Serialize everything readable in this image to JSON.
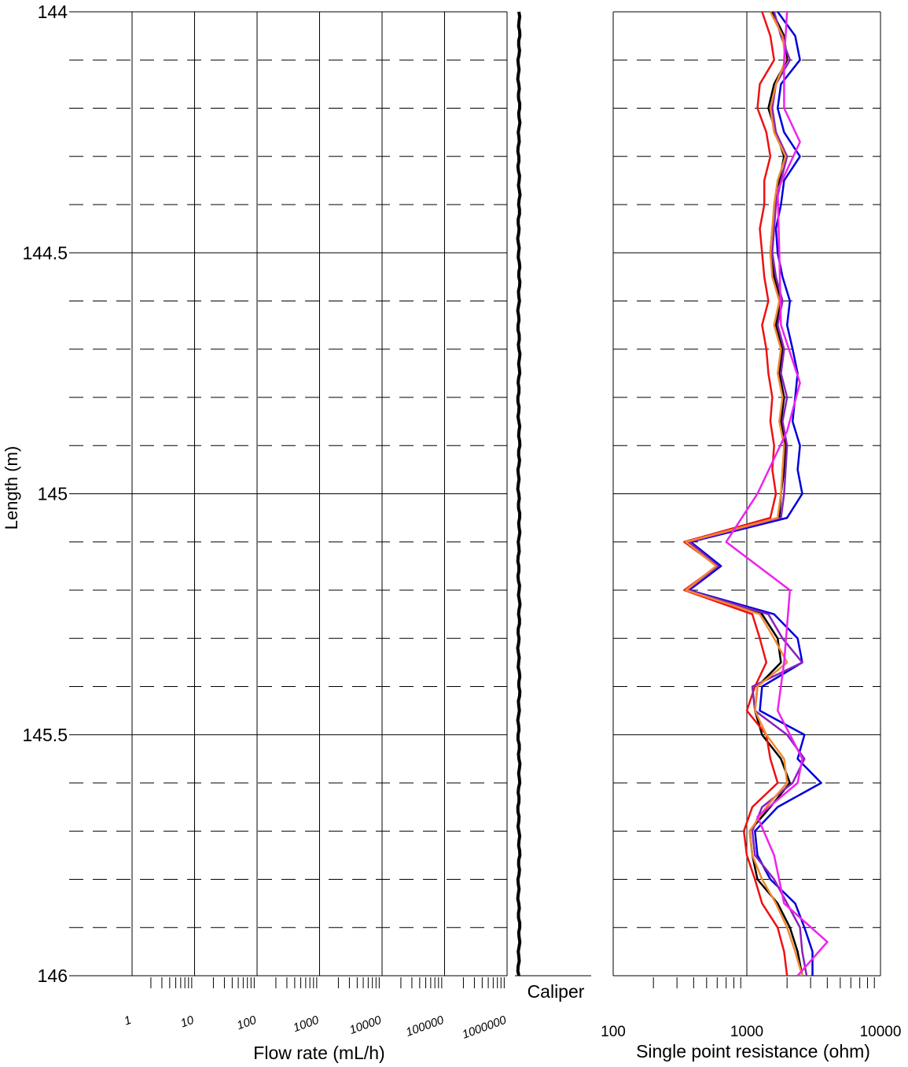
{
  "chart_data": [
    {
      "type": "line",
      "panel": "flow",
      "title": "",
      "xlabel": "Flow rate (mL/h)",
      "ylabel": "Length (m)",
      "x_scale": "log",
      "xlim": [
        1,
        1000000
      ],
      "ylim": [
        144,
        146
      ],
      "y_inverted": true,
      "x_tick_labels": [
        "1",
        "10",
        "100",
        "1000",
        "10000",
        "100000",
        "1000000"
      ],
      "y_tick_labels": [
        "144",
        "144.5",
        "145",
        "145.5",
        "146"
      ],
      "grid": "solid major lines, dashed minor depth lines every 0.1 m",
      "series": []
    },
    {
      "type": "line",
      "panel": "caliper",
      "xlabel": "Caliper",
      "ylim": [
        144,
        146
      ],
      "series": [
        {
          "color": "#000000",
          "x_relative": 0.5,
          "y": [
            144,
            146
          ]
        }
      ]
    },
    {
      "type": "line",
      "panel": "resistance",
      "xlabel": "Single point resistance (ohm)",
      "x_scale": "log",
      "xlim": [
        100,
        10000
      ],
      "ylim": [
        144,
        146
      ],
      "x_tick_labels": [
        "100",
        "1000",
        "10000"
      ],
      "grid": "solid major lines, dashed minor depth lines every 0.1 m",
      "series": [
        {
          "color": "#000000",
          "y": [
            144.0,
            144.05,
            144.1,
            144.15,
            144.2,
            144.25,
            144.3,
            144.35,
            144.4,
            144.45,
            144.5,
            144.55,
            144.6,
            144.65,
            144.7,
            144.75,
            144.8,
            144.85,
            144.9,
            144.95,
            145.0,
            145.05,
            145.1,
            145.15,
            145.2,
            145.25,
            145.3,
            145.35,
            145.4,
            145.45,
            145.5,
            145.55,
            145.6,
            145.65,
            145.7,
            145.75,
            145.8,
            145.85,
            145.9,
            145.95,
            146.0
          ],
          "x": [
            1550,
            1900,
            2000,
            1600,
            1450,
            1650,
            1900,
            1750,
            1650,
            1550,
            1500,
            1600,
            1800,
            1650,
            1850,
            1750,
            1900,
            1800,
            1950,
            1900,
            1800,
            1750,
            360,
            600,
            360,
            1300,
            1700,
            1800,
            1200,
            1150,
            1300,
            1800,
            2100,
            1500,
            1050,
            1100,
            1200,
            1700,
            2100,
            2400,
            2600
          ]
        },
        {
          "color": "#0000dd",
          "y": [
            144.0,
            144.05,
            144.1,
            144.15,
            144.2,
            144.25,
            144.3,
            144.35,
            144.4,
            144.45,
            144.5,
            144.55,
            144.6,
            144.65,
            144.7,
            144.75,
            144.8,
            144.85,
            144.9,
            144.95,
            145.0,
            145.05,
            145.1,
            145.15,
            145.2,
            145.25,
            145.3,
            145.35,
            145.4,
            145.45,
            145.5,
            145.55,
            145.6,
            145.65,
            145.7,
            145.75,
            145.8,
            145.85,
            145.9,
            145.95,
            146.0
          ],
          "x": [
            1700,
            2300,
            2500,
            1800,
            1700,
            1900,
            2500,
            1900,
            1800,
            1650,
            1700,
            1850,
            2100,
            2000,
            2200,
            2400,
            2300,
            2200,
            2500,
            2400,
            2600,
            2000,
            380,
            640,
            370,
            1600,
            2400,
            2600,
            1300,
            1250,
            2700,
            2400,
            3600,
            1700,
            1150,
            1200,
            1500,
            2300,
            2700,
            3100,
            3100
          ]
        },
        {
          "color": "#ee1111",
          "y": [
            144.0,
            144.05,
            144.1,
            144.15,
            144.2,
            144.25,
            144.3,
            144.35,
            144.4,
            144.45,
            144.5,
            144.55,
            144.6,
            144.65,
            144.7,
            144.75,
            144.8,
            144.85,
            144.9,
            144.95,
            145.0,
            145.05,
            145.1,
            145.15,
            145.2,
            145.25,
            145.3,
            145.35,
            145.4,
            145.45,
            145.5,
            145.55,
            145.6,
            145.65,
            145.7,
            145.75,
            145.8,
            145.85,
            145.9,
            145.95,
            146.0
          ],
          "x": [
            1300,
            1500,
            1600,
            1250,
            1200,
            1400,
            1500,
            1350,
            1350,
            1250,
            1300,
            1350,
            1450,
            1300,
            1400,
            1450,
            1550,
            1500,
            1600,
            1550,
            1650,
            1500,
            340,
            600,
            340,
            1100,
            1250,
            1400,
            1150,
            1000,
            1400,
            1500,
            1700,
            1100,
            950,
            1000,
            1150,
            1300,
            1700,
            1900,
            2000
          ]
        },
        {
          "color": "#8822bb",
          "y": [
            144.0,
            144.05,
            144.1,
            144.15,
            144.2,
            144.25,
            144.3,
            144.35,
            144.4,
            144.45,
            144.5,
            144.55,
            144.6,
            144.65,
            144.7,
            144.75,
            144.8,
            144.85,
            144.9,
            144.95,
            145.0,
            145.05,
            145.1,
            145.15,
            145.2,
            145.25,
            145.3,
            145.35,
            145.4,
            145.45,
            145.5,
            145.55,
            145.6,
            145.65,
            145.7,
            145.75,
            145.8,
            145.85,
            145.9,
            145.95,
            146.0
          ],
          "x": [
            1600,
            1800,
            2100,
            1650,
            1550,
            1650,
            2000,
            1800,
            1650,
            1600,
            1550,
            1650,
            1850,
            1700,
            1900,
            1800,
            2000,
            1850,
            2000,
            1950,
            1900,
            1800,
            370,
            610,
            360,
            1450,
            1850,
            2600,
            1100,
            1150,
            2000,
            2700,
            2200,
            1300,
            1100,
            1150,
            1600,
            2000,
            2500,
            2600,
            2800
          ]
        },
        {
          "color": "#f08a30",
          "y": [
            144.0,
            144.05,
            144.1,
            144.15,
            144.2,
            144.25,
            144.3,
            144.35,
            144.4,
            144.45,
            144.5,
            144.55,
            144.6,
            144.65,
            144.7,
            144.75,
            144.8,
            144.85,
            144.9,
            144.95,
            145.0,
            145.05,
            145.1,
            145.15,
            145.2,
            145.25,
            145.3,
            145.35,
            145.4,
            145.45,
            145.5,
            145.55,
            145.6,
            145.65,
            145.7,
            145.75,
            145.8,
            145.85,
            145.9,
            145.95,
            146.0
          ],
          "x": [
            1500,
            1850,
            1950,
            1650,
            1500,
            1600,
            1950,
            1700,
            1600,
            1550,
            1500,
            1550,
            1750,
            1600,
            1800,
            1700,
            1850,
            1750,
            1900,
            1850,
            1800,
            1700,
            350,
            590,
            350,
            1250,
            1600,
            2000,
            1200,
            1150,
            1400,
            1900,
            2000,
            1400,
            1050,
            1100,
            1300,
            1650,
            2000,
            2300,
            2600
          ]
        },
        {
          "color": "#ee22ee",
          "y": [
            144.0,
            144.1,
            144.2,
            144.27,
            144.37,
            144.5,
            144.65,
            144.77,
            144.87,
            145.0,
            145.1,
            145.2,
            145.35,
            145.45,
            145.55,
            145.6,
            145.67,
            145.75,
            145.85,
            145.93,
            146.0
          ],
          "x": [
            2000,
            1900,
            1900,
            2500,
            1700,
            1750,
            1800,
            2500,
            2000,
            1200,
            700,
            2100,
            1900,
            1700,
            2600,
            2400,
            1200,
            1600,
            1900,
            4000,
            2400
          ]
        }
      ]
    }
  ]
}
